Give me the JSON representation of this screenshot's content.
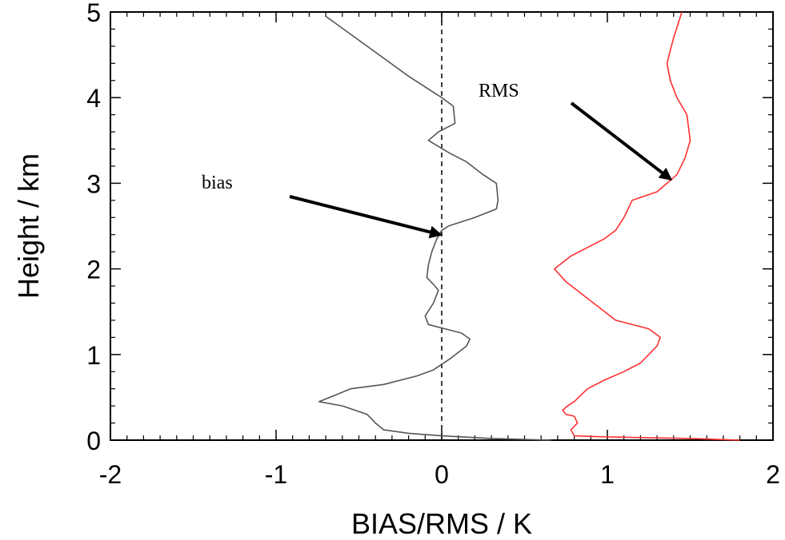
{
  "chart_data": {
    "type": "line",
    "xlabel": "BIAS/RMS / K",
    "ylabel": "Height / km",
    "xlim": [
      -2,
      2
    ],
    "ylim": [
      0,
      5
    ],
    "x_ticks": [
      "-2",
      "-1",
      "0",
      "1",
      "2"
    ],
    "y_ticks": [
      "0",
      "1",
      "2",
      "3",
      "4",
      "5"
    ],
    "grid": false,
    "reference_line": {
      "x": 0,
      "style": "dashed"
    },
    "series": [
      {
        "color": "#555555",
        "points": [
          [
            0.66,
            0.0
          ],
          [
            0.3,
            0.02
          ],
          [
            0.0,
            0.05
          ],
          [
            -0.2,
            0.08
          ],
          [
            -0.35,
            0.12
          ],
          [
            -0.4,
            0.2
          ],
          [
            -0.45,
            0.3
          ],
          [
            -0.6,
            0.4
          ],
          [
            -0.74,
            0.45
          ],
          [
            -0.65,
            0.52
          ],
          [
            -0.55,
            0.6
          ],
          [
            -0.35,
            0.65
          ],
          [
            -0.15,
            0.75
          ],
          [
            -0.05,
            0.82
          ],
          [
            0.05,
            0.95
          ],
          [
            0.15,
            1.1
          ],
          [
            0.17,
            1.18
          ],
          [
            0.12,
            1.25
          ],
          [
            0.02,
            1.3
          ],
          [
            -0.08,
            1.35
          ],
          [
            -0.1,
            1.45
          ],
          [
            -0.05,
            1.6
          ],
          [
            -0.02,
            1.75
          ],
          [
            -0.05,
            1.82
          ],
          [
            -0.09,
            1.9
          ],
          [
            -0.08,
            2.05
          ],
          [
            -0.06,
            2.2
          ],
          [
            -0.03,
            2.35
          ],
          [
            0.0,
            2.45
          ],
          [
            0.04,
            2.5
          ],
          [
            0.2,
            2.6
          ],
          [
            0.33,
            2.7
          ],
          [
            0.34,
            2.8
          ],
          [
            0.33,
            3.0
          ],
          [
            0.25,
            3.1
          ],
          [
            0.15,
            3.25
          ],
          [
            0.05,
            3.35
          ],
          [
            -0.08,
            3.5
          ],
          [
            -0.02,
            3.6
          ],
          [
            0.08,
            3.7
          ],
          [
            0.07,
            3.9
          ],
          [
            0.0,
            4.0
          ],
          [
            -0.2,
            4.25
          ],
          [
            -0.45,
            4.6
          ],
          [
            -0.7,
            4.95
          ]
        ]
      },
      {
        "color": "#ff3030",
        "points": [
          [
            1.8,
            0.0
          ],
          [
            1.5,
            0.02
          ],
          [
            1.2,
            0.03
          ],
          [
            0.95,
            0.04
          ],
          [
            0.8,
            0.05
          ],
          [
            0.78,
            0.12
          ],
          [
            0.82,
            0.2
          ],
          [
            0.8,
            0.28
          ],
          [
            0.75,
            0.3
          ],
          [
            0.73,
            0.35
          ],
          [
            0.76,
            0.4
          ],
          [
            0.8,
            0.45
          ],
          [
            0.88,
            0.6
          ],
          [
            0.98,
            0.7
          ],
          [
            1.1,
            0.8
          ],
          [
            1.2,
            0.9
          ],
          [
            1.25,
            1.0
          ],
          [
            1.3,
            1.1
          ],
          [
            1.32,
            1.2
          ],
          [
            1.25,
            1.3
          ],
          [
            1.05,
            1.4
          ],
          [
            0.95,
            1.55
          ],
          [
            0.85,
            1.7
          ],
          [
            0.75,
            1.85
          ],
          [
            0.68,
            2.0
          ],
          [
            0.78,
            2.15
          ],
          [
            0.88,
            2.25
          ],
          [
            0.98,
            2.35
          ],
          [
            1.05,
            2.45
          ],
          [
            1.1,
            2.6
          ],
          [
            1.15,
            2.8
          ],
          [
            1.3,
            2.9
          ],
          [
            1.42,
            3.1
          ],
          [
            1.47,
            3.3
          ],
          [
            1.5,
            3.5
          ],
          [
            1.48,
            3.8
          ],
          [
            1.42,
            4.0
          ],
          [
            1.38,
            4.2
          ],
          [
            1.36,
            4.4
          ],
          [
            1.4,
            4.7
          ],
          [
            1.45,
            5.0
          ]
        ]
      }
    ],
    "annotations": [
      {
        "text": "bias",
        "target": [
          -0.01,
          2.4
        ]
      },
      {
        "text": "RMS",
        "target": [
          1.38,
          3.05
        ]
      }
    ]
  }
}
